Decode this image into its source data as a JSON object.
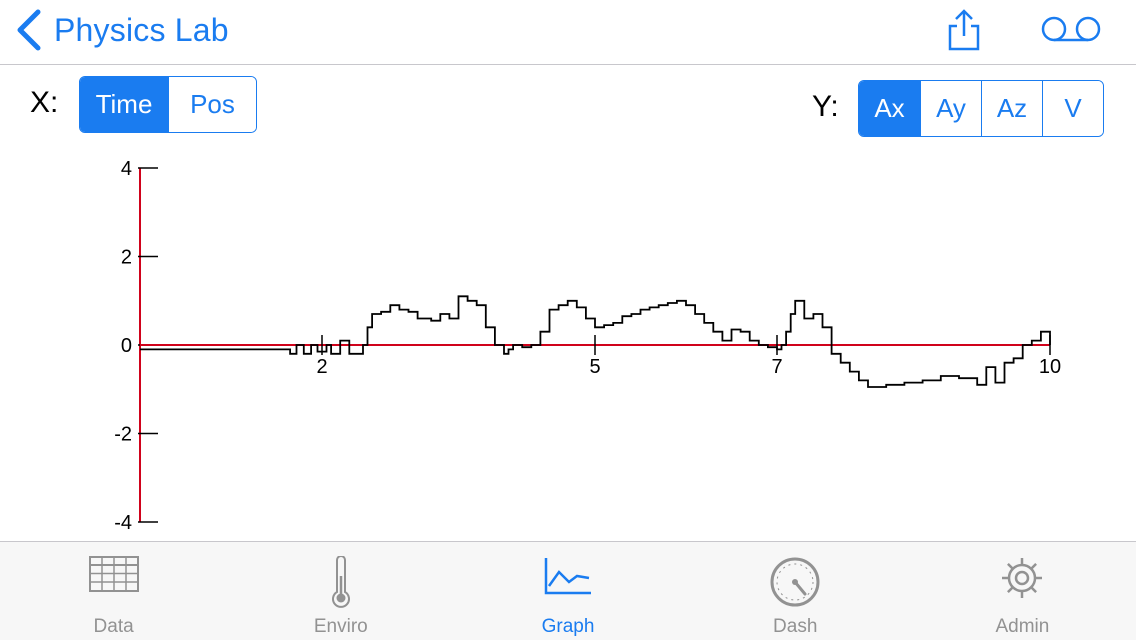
{
  "nav": {
    "back_label": "Physics Lab"
  },
  "x_axis_selector": {
    "label": "X:",
    "options": [
      "Time",
      "Pos"
    ],
    "selected": "Time"
  },
  "y_axis_selector": {
    "label": "Y:",
    "options": [
      "Ax",
      "Ay",
      "Az",
      "V"
    ],
    "selected": "Ax"
  },
  "colors": {
    "accent": "#1a7cf0",
    "axis": "#d0021b",
    "trace": "#000000",
    "inactive": "#929292"
  },
  "chart_data": {
    "type": "line",
    "xlim": [
      0,
      10
    ],
    "ylim": [
      -4,
      4
    ],
    "x_ticks": [
      2,
      5,
      7,
      10
    ],
    "y_ticks": [
      4,
      2,
      0,
      -2,
      -4
    ],
    "grid": false,
    "series": [
      {
        "x": [
          0,
          1.5,
          1.65,
          1.72,
          1.8,
          1.88,
          1.95,
          2.05,
          2.1,
          2.2,
          2.3,
          2.45,
          2.5,
          2.55,
          2.65,
          2.75,
          2.85,
          2.95,
          3.05,
          3.2,
          3.3,
          3.4,
          3.5,
          3.6,
          3.7,
          3.8,
          3.9,
          4.0,
          4.05,
          4.1,
          4.2,
          4.3,
          4.4,
          4.5,
          4.6,
          4.7,
          4.8,
          4.9,
          5.0,
          5.1,
          5.2,
          5.3,
          5.4,
          5.5,
          5.6,
          5.7,
          5.8,
          5.9,
          6.0,
          6.1,
          6.2,
          6.3,
          6.4,
          6.5,
          6.6,
          6.7,
          6.8,
          6.9,
          7.0,
          7.05,
          7.1,
          7.15,
          7.2,
          7.3,
          7.4,
          7.5,
          7.6,
          7.7,
          7.8,
          7.9,
          8.0,
          8.2,
          8.4,
          8.6,
          8.8,
          9.0,
          9.2,
          9.3,
          9.4,
          9.5,
          9.6,
          9.7,
          9.8,
          9.9,
          10.0
        ],
        "y": [
          -0.1,
          -0.1,
          -0.2,
          0.0,
          -0.2,
          0.0,
          -0.15,
          0.0,
          -0.2,
          0.1,
          -0.2,
          0.0,
          0.4,
          0.7,
          0.75,
          0.9,
          0.8,
          0.75,
          0.6,
          0.55,
          0.7,
          0.6,
          1.1,
          1.0,
          0.9,
          0.4,
          0.0,
          -0.2,
          -0.1,
          0.0,
          -0.05,
          0.0,
          0.3,
          0.8,
          0.9,
          1.0,
          0.85,
          0.6,
          0.4,
          0.45,
          0.5,
          0.65,
          0.7,
          0.8,
          0.85,
          0.9,
          0.95,
          1.0,
          0.9,
          0.7,
          0.5,
          0.3,
          0.1,
          0.35,
          0.3,
          0.1,
          0.0,
          -0.05,
          -0.1,
          0.0,
          0.3,
          0.7,
          1.0,
          0.6,
          0.7,
          0.4,
          -0.2,
          -0.4,
          -0.6,
          -0.8,
          -0.95,
          -0.9,
          -0.85,
          -0.8,
          -0.7,
          -0.75,
          -0.9,
          -0.5,
          -0.85,
          -0.4,
          -0.3,
          0.0,
          0.1,
          0.3,
          0.0
        ]
      }
    ]
  },
  "tabs": [
    {
      "label": "Data",
      "icon": "table-icon"
    },
    {
      "label": "Enviro",
      "icon": "thermometer-icon"
    },
    {
      "label": "Graph",
      "icon": "graph-icon"
    },
    {
      "label": "Dash",
      "icon": "gauge-icon"
    },
    {
      "label": "Admin",
      "icon": "gear-icon"
    }
  ],
  "active_tab": "Graph"
}
